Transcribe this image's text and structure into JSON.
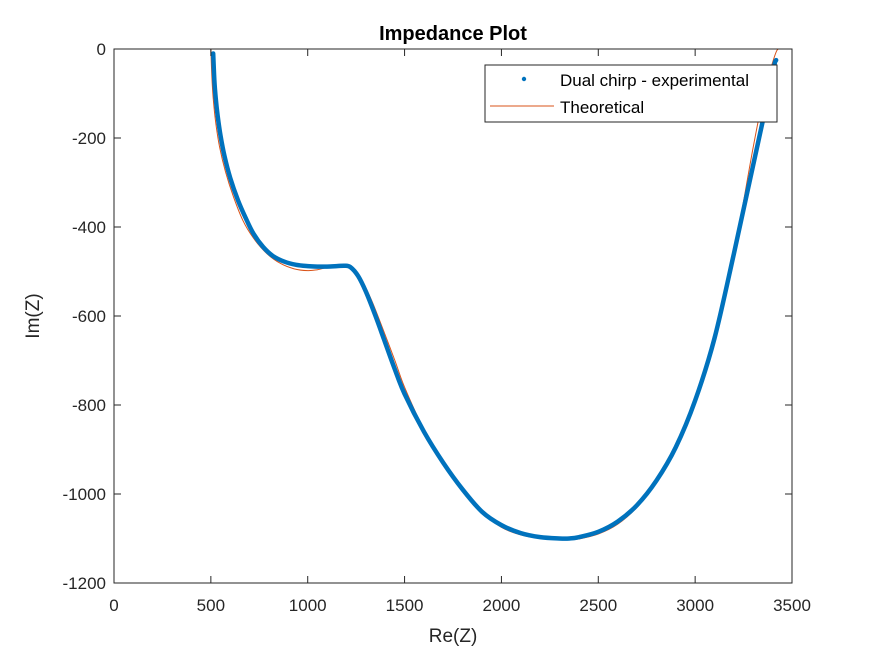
{
  "chart_data": {
    "type": "line",
    "title": "Impedance Plot",
    "xlabel": "Re(Z)",
    "ylabel": "Im(Z)",
    "xlim": [
      0,
      3500
    ],
    "ylim": [
      -1200,
      0
    ],
    "xticks": [
      0,
      500,
      1000,
      1500,
      2000,
      2500,
      3000,
      3500
    ],
    "yticks": [
      0,
      -200,
      -400,
      -600,
      -800,
      -1000,
      -1200
    ],
    "grid": false,
    "legend_position": "top-right",
    "series": [
      {
        "name": "Dual chirp - experimental",
        "style": "markers",
        "color": "#0072BD",
        "x": [
          512,
          518,
          525,
          535,
          550,
          570,
          600,
          640,
          680,
          720,
          770,
          820,
          880,
          940,
          1000,
          1050,
          1100,
          1150,
          1190,
          1220,
          1260,
          1300,
          1350,
          1400,
          1450,
          1500,
          1600,
          1700,
          1800,
          1900,
          2000,
          2100,
          2200,
          2300,
          2350,
          2400,
          2500,
          2600,
          2700,
          2800,
          2900,
          3000,
          3100,
          3200,
          3280,
          3330,
          3370,
          3390,
          3405,
          3412,
          3418
        ],
        "y": [
          -10,
          -70,
          -110,
          -150,
          -195,
          -240,
          -290,
          -340,
          -380,
          -415,
          -445,
          -465,
          -478,
          -485,
          -488,
          -489,
          -489,
          -488,
          -487,
          -490,
          -510,
          -545,
          -600,
          -660,
          -720,
          -775,
          -860,
          -930,
          -990,
          -1040,
          -1070,
          -1088,
          -1097,
          -1100,
          -1100,
          -1097,
          -1085,
          -1062,
          -1025,
          -970,
          -895,
          -790,
          -650,
          -460,
          -300,
          -200,
          -120,
          -80,
          -45,
          -30,
          -25
        ]
      },
      {
        "name": "Theoretical",
        "style": "line",
        "color": "#D95319",
        "x": [
          500,
          505,
          512,
          525,
          545,
          575,
          615,
          665,
          720,
          790,
          860,
          930,
          1000,
          1050,
          1100,
          1150,
          1200,
          1240,
          1280,
          1330,
          1380,
          1450,
          1500,
          1600,
          1700,
          1800,
          1900,
          2000,
          2100,
          2200,
          2300,
          2350,
          2400,
          2500,
          2600,
          2700,
          2800,
          2900,
          3000,
          3100,
          3200,
          3300,
          3360,
          3400,
          3420,
          3430
        ],
        "y": [
          0,
          -60,
          -110,
          -165,
          -220,
          -275,
          -330,
          -385,
          -425,
          -460,
          -482,
          -494,
          -498,
          -496,
          -491,
          -488,
          -488,
          -495,
          -520,
          -565,
          -620,
          -700,
          -760,
          -855,
          -930,
          -990,
          -1040,
          -1075,
          -1092,
          -1100,
          -1103,
          -1103,
          -1101,
          -1090,
          -1068,
          -1030,
          -975,
          -900,
          -795,
          -650,
          -460,
          -220,
          -90,
          -30,
          -5,
          0
        ]
      }
    ]
  }
}
